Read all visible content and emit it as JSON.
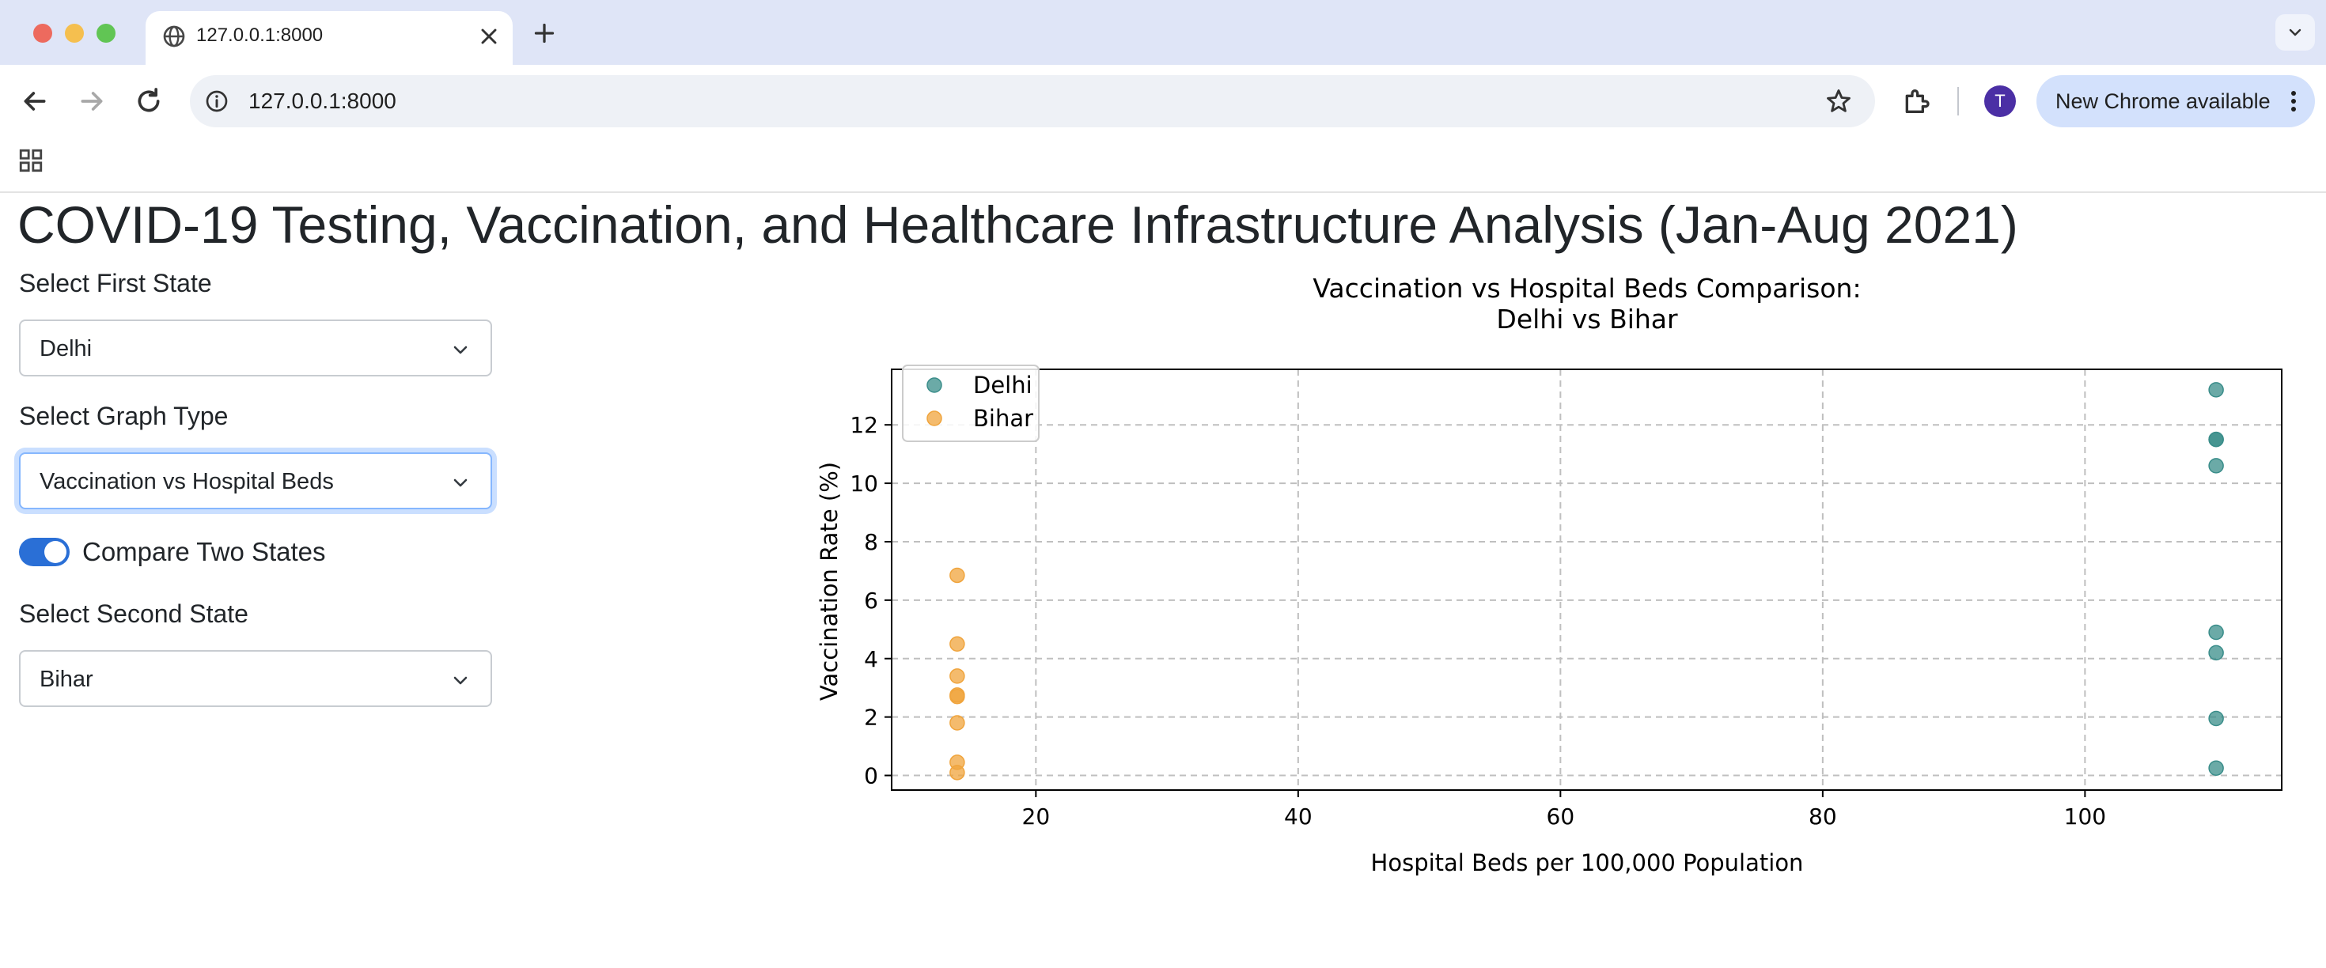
{
  "browser": {
    "tab_title": "127.0.0.1:8000",
    "url": "127.0.0.1:8000",
    "update_label": "New Chrome available",
    "avatar_initial": "T",
    "icons": [
      "globe-icon",
      "close-icon",
      "plus-icon",
      "chevron-down-icon",
      "back-icon",
      "forward-icon",
      "reload-icon",
      "site-info-icon",
      "star-icon",
      "extensions-icon",
      "more-vert-icon",
      "apps-grid-icon"
    ]
  },
  "page": {
    "title": "COVID-19 Testing, Vaccination, and Healthcare Infrastructure Analysis (Jan-Aug 2021)"
  },
  "controls": {
    "first_state": {
      "label": "Select First State",
      "value": "Delhi"
    },
    "graph_type": {
      "label": "Select Graph Type",
      "value": "Vaccination vs Hospital Beds"
    },
    "compare_toggle": {
      "label": "Compare Two States",
      "on": true
    },
    "second_state": {
      "label": "Select Second State",
      "value": "Bihar"
    }
  },
  "chart_data": {
    "type": "scatter",
    "title": "Vaccination vs Hospital Beds Comparison:",
    "subtitle": "Delhi vs Bihar",
    "xlabel": "Hospital Beds per 100,000 Population",
    "ylabel": "Vaccination Rate (%)",
    "xlim": [
      9,
      115
    ],
    "ylim": [
      -0.5,
      13.9
    ],
    "xticks": [
      20,
      40,
      60,
      80,
      100
    ],
    "yticks": [
      0,
      2,
      4,
      6,
      8,
      10,
      12
    ],
    "grid": true,
    "legend_position": "top-left",
    "series": [
      {
        "name": "Delhi",
        "color": "#3a8d8a",
        "x": [
          110,
          110,
          110,
          110,
          110,
          110,
          110,
          110
        ],
        "y": [
          13.2,
          11.5,
          11.5,
          10.6,
          4.9,
          4.2,
          1.95,
          0.25
        ]
      },
      {
        "name": "Bihar",
        "color": "#f0a43c",
        "x": [
          14,
          14,
          14,
          14,
          14,
          14,
          14,
          14
        ],
        "y": [
          6.85,
          4.5,
          3.4,
          2.75,
          2.7,
          1.8,
          0.45,
          0.1
        ]
      }
    ]
  }
}
